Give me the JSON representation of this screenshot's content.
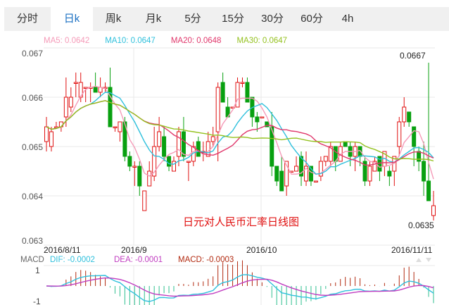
{
  "tabs": [
    {
      "label": "分时",
      "active": false
    },
    {
      "label": "日k",
      "active": true
    },
    {
      "label": "周k",
      "active": false
    },
    {
      "label": "月k",
      "active": false
    },
    {
      "label": "5分",
      "active": false
    },
    {
      "label": "15分",
      "active": false
    },
    {
      "label": "30分",
      "active": false
    },
    {
      "label": "60分",
      "active": false
    },
    {
      "label": "4h",
      "active": false
    }
  ],
  "legend": {
    "ma5": "MA5: 0.0642",
    "ma10": "MA10: 0.0647",
    "ma20": "MA20: 0.0648",
    "ma30": "MA30: 0.0647"
  },
  "colors": {
    "up": "#e01010",
    "down": "#08a010",
    "ma5": "#f59ab8",
    "ma10": "#2fc0dc",
    "ma20": "#e0386c",
    "ma30": "#94c11f",
    "dif": "#2fc0dc",
    "dea": "#c03cc0",
    "macd_pos": "#b22a10",
    "macd_neg": "#2fbf8f",
    "tab_active": "#1a6fc2"
  },
  "macd_legend": {
    "label": "MACD",
    "dif": "DIF: -0.0002",
    "dea": "DEA: -0.0001",
    "macd": "MACD: -0.0003"
  },
  "annotations": {
    "high": "0.0667",
    "low": "0.0635",
    "title": "日元对人民币汇率日线图"
  },
  "chart_data": [
    {
      "type": "candlestick",
      "title": "日元对人民币汇率日线图",
      "yticks": [
        "0.067",
        "0.066",
        "0.065",
        "0.064",
        "0.063"
      ],
      "ylim": [
        0.063,
        0.067
      ],
      "xticks": [
        "2016/8/11",
        "2016/9",
        "2016/10",
        "2016/11/11"
      ],
      "max_label": 0.0667,
      "min_label": 0.0635,
      "candles": [
        [
          0.0651,
          0.0654,
          0.0649,
          0.0656
        ],
        [
          0.065,
          0.0653,
          0.0649,
          0.0654
        ],
        [
          0.0654,
          0.0654,
          0.0654,
          0.0655
        ],
        [
          0.0654,
          0.0655,
          0.0653,
          0.0655
        ],
        [
          0.0656,
          0.066,
          0.0654,
          0.0664
        ],
        [
          0.0658,
          0.066,
          0.0657,
          0.0662
        ],
        [
          0.0663,
          0.0663,
          0.066,
          0.0665
        ],
        [
          0.066,
          0.0663,
          0.0659,
          0.0665
        ],
        [
          0.0662,
          0.0662,
          0.0659,
          0.0662
        ],
        [
          0.0662,
          0.0662,
          0.0659,
          0.0663
        ],
        [
          0.0662,
          0.0661,
          0.0661,
          0.0665
        ],
        [
          0.0661,
          0.0662,
          0.066,
          0.0664
        ],
        [
          0.0662,
          0.0662,
          0.0661,
          0.0663
        ],
        [
          0.0662,
          0.0654,
          0.0654,
          0.0666
        ],
        [
          0.0654,
          0.0654,
          0.0653,
          0.0654
        ],
        [
          0.0653,
          0.0655,
          0.0651,
          0.0655
        ],
        [
          0.0655,
          0.0648,
          0.0647,
          0.0656
        ],
        [
          0.0648,
          0.0646,
          0.0645,
          0.0649
        ],
        [
          0.0646,
          0.0646,
          0.0642,
          0.0647
        ],
        [
          0.0646,
          0.0642,
          0.064,
          0.0647
        ],
        [
          0.0637,
          0.0641,
          0.0637,
          0.0641
        ],
        [
          0.0642,
          0.0645,
          0.0642,
          0.0647
        ],
        [
          0.0644,
          0.065,
          0.0643,
          0.0654
        ],
        [
          0.065,
          0.0653,
          0.0649,
          0.0656
        ],
        [
          0.0652,
          0.0648,
          0.0647,
          0.0654
        ],
        [
          0.0648,
          0.0646,
          0.0645,
          0.0648
        ],
        [
          0.0645,
          0.0647,
          0.0645,
          0.0648
        ],
        [
          0.0648,
          0.0653,
          0.0646,
          0.0654
        ],
        [
          0.0653,
          0.0648,
          0.0647,
          0.0656
        ],
        [
          0.0647,
          0.0647,
          0.0643,
          0.0647
        ],
        [
          0.0647,
          0.065,
          0.0646,
          0.0651
        ],
        [
          0.0651,
          0.0648,
          0.0648,
          0.0652
        ],
        [
          0.0649,
          0.0649,
          0.0647,
          0.0651
        ],
        [
          0.0648,
          0.0651,
          0.0648,
          0.0653
        ],
        [
          0.0651,
          0.0652,
          0.065,
          0.0654
        ],
        [
          0.0653,
          0.0662,
          0.0647,
          0.0663
        ],
        [
          0.0663,
          0.0659,
          0.0659,
          0.0665
        ],
        [
          0.0658,
          0.0656,
          0.0656,
          0.066
        ],
        [
          0.0658,
          0.0658,
          0.0658,
          0.0658
        ],
        [
          0.0658,
          0.0663,
          0.0658,
          0.0664
        ],
        [
          0.0663,
          0.0663,
          0.0662,
          0.0664
        ],
        [
          0.0663,
          0.0659,
          0.0659,
          0.0664
        ],
        [
          0.066,
          0.0656,
          0.0654,
          0.066
        ],
        [
          0.0656,
          0.0655,
          0.0653,
          0.0657
        ],
        [
          0.0656,
          0.0656,
          0.0656,
          0.0656
        ],
        [
          0.0655,
          0.0654,
          0.0654,
          0.0655
        ],
        [
          0.0654,
          0.0646,
          0.0644,
          0.0657
        ],
        [
          0.0646,
          0.0643,
          0.0642,
          0.0646
        ],
        [
          0.0645,
          0.0641,
          0.0641,
          0.0648
        ],
        [
          0.0642,
          0.0647,
          0.064,
          0.0647
        ],
        [
          0.0645,
          0.0645,
          0.0645,
          0.0645
        ],
        [
          0.0645,
          0.0646,
          0.0645,
          0.0648
        ],
        [
          0.0648,
          0.0644,
          0.0642,
          0.0649
        ],
        [
          0.0643,
          0.0646,
          0.0642,
          0.0649
        ],
        [
          0.0646,
          0.0643,
          0.0642,
          0.0646
        ],
        [
          0.0643,
          0.0643,
          0.0643,
          0.0643
        ],
        [
          0.0644,
          0.0647,
          0.0643,
          0.0648
        ],
        [
          0.0647,
          0.0648,
          0.0646,
          0.0648
        ],
        [
          0.0647,
          0.065,
          0.0646,
          0.0651
        ],
        [
          0.065,
          0.0647,
          0.0645,
          0.065
        ],
        [
          0.0647,
          0.065,
          0.0647,
          0.0651
        ],
        [
          0.0651,
          0.065,
          0.065,
          0.0651
        ],
        [
          0.065,
          0.0648,
          0.0646,
          0.0651
        ],
        [
          0.0648,
          0.065,
          0.0645,
          0.0651
        ],
        [
          0.065,
          0.0648,
          0.0646,
          0.065
        ],
        [
          0.0647,
          0.0643,
          0.0642,
          0.0648
        ],
        [
          0.0643,
          0.0646,
          0.0642,
          0.0647
        ],
        [
          0.0645,
          0.0647,
          0.0645,
          0.0648
        ],
        [
          0.0648,
          0.0645,
          0.0643,
          0.0648
        ],
        [
          0.0646,
          0.0649,
          0.0644,
          0.0649
        ],
        [
          0.0645,
          0.0644,
          0.0642,
          0.0646
        ],
        [
          0.0645,
          0.0648,
          0.0642,
          0.0648
        ],
        [
          0.065,
          0.0655,
          0.0648,
          0.0656
        ],
        [
          0.0655,
          0.0658,
          0.0654,
          0.066
        ],
        [
          0.0657,
          0.0655,
          0.0654,
          0.0657
        ],
        [
          0.0654,
          0.065,
          0.0646,
          0.0654
        ],
        [
          0.0649,
          0.0647,
          0.0645,
          0.065
        ],
        [
          0.0647,
          0.0643,
          0.064,
          0.0651
        ],
        [
          0.0643,
          0.0639,
          0.0639,
          0.0667
        ],
        [
          0.0636,
          0.0638,
          0.0635,
          0.0641
        ]
      ],
      "series": [
        {
          "name": "MA5",
          "color": "#f59ab8"
        },
        {
          "name": "MA10",
          "color": "#2fc0dc"
        },
        {
          "name": "MA20",
          "color": "#e0386c"
        },
        {
          "name": "MA30",
          "color": "#94c11f"
        }
      ]
    },
    {
      "type": "bar",
      "title": "MACD",
      "yticks": [
        "1",
        "-1"
      ],
      "legend": [
        "DIF: -0.0002",
        "DEA: -0.0001",
        "MACD: -0.0003"
      ]
    }
  ]
}
